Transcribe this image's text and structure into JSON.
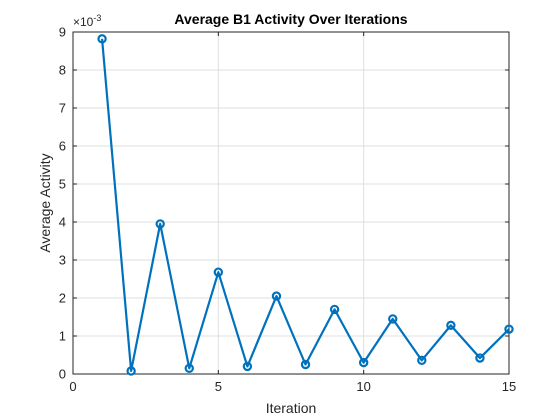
{
  "chart_data": {
    "type": "line",
    "title": "Average B1 Activity Over Iterations",
    "xlabel": "Iteration",
    "ylabel": "Average Activity",
    "y_exponent_label": "×10",
    "y_exponent_power": "-3",
    "xlim": [
      0,
      15
    ],
    "ylim": [
      0,
      9
    ],
    "xticks": [
      0,
      5,
      10,
      15
    ],
    "yticks": [
      0,
      1,
      2,
      3,
      4,
      5,
      6,
      7,
      8,
      9
    ],
    "grid": true,
    "series_color": "#0072bd",
    "x": [
      1,
      2,
      3,
      4,
      5,
      6,
      7,
      8,
      9,
      10,
      11,
      12,
      13,
      14,
      15
    ],
    "y": [
      8.82,
      0.08,
      3.95,
      0.15,
      2.68,
      0.2,
      2.05,
      0.25,
      1.7,
      0.3,
      1.45,
      0.36,
      1.28,
      0.42,
      1.18
    ]
  }
}
